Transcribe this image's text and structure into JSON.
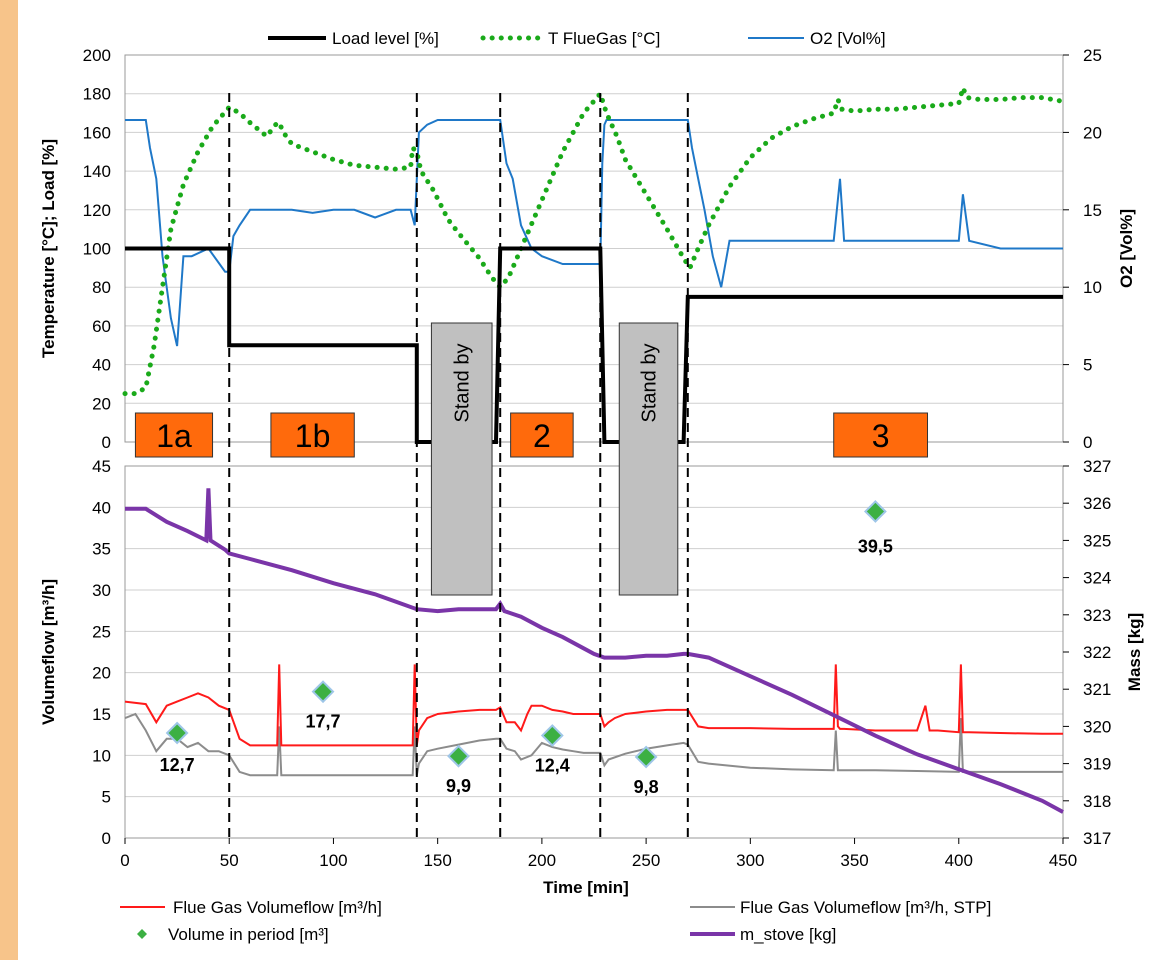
{
  "colors": {
    "frame_left": "#f7c48a",
    "frame_top": "#ffffff",
    "load": "#000000",
    "tflue": "#1aaa1a",
    "o2": "#1f78c8",
    "vf": "#ff1a1a",
    "vfstp": "#8c8c8c",
    "mass": "#7a35a8",
    "marker": "#3cb043",
    "phase_box": "#ff6a0c",
    "standby": "#c0c0c0",
    "grid": "#cfcfcf"
  },
  "chart_data": [
    {
      "type": "line",
      "name": "top",
      "xlim": [
        0,
        450
      ],
      "ylim_left": [
        0,
        200
      ],
      "ylim_right": [
        0,
        25
      ],
      "left_ticks": [
        "0",
        "20",
        "40",
        "60",
        "80",
        "100",
        "120",
        "140",
        "160",
        "180",
        "200"
      ],
      "right_ticks": [
        "0",
        "5",
        "10",
        "15",
        "20",
        "25"
      ],
      "ylabel_left": "Temperature [°C]; Load [%]",
      "ylabel_right": "O2 [Vol%]",
      "legend_position": "top",
      "legend": [
        "Load level [%]",
        "T FlueGas [°C]",
        "O2 [Vol%]"
      ],
      "series": [
        {
          "name": "Load level [%]",
          "axis": "left",
          "x": [
            0,
            50,
            50,
            140,
            140,
            178,
            180,
            228,
            230,
            268,
            270,
            450
          ],
          "y": [
            100,
            100,
            50,
            50,
            0,
            0,
            100,
            100,
            0,
            0,
            75,
            75
          ]
        },
        {
          "name": "T FlueGas [°C]",
          "axis": "left",
          "x": [
            0,
            5,
            10,
            14,
            18,
            22,
            28,
            35,
            42,
            50,
            55,
            60,
            68,
            73,
            74,
            76,
            80,
            90,
            100,
            110,
            120,
            130,
            137,
            138,
            140,
            142,
            148,
            155,
            160,
            170,
            176,
            180,
            184,
            188,
            194,
            200,
            210,
            220,
            228,
            231,
            236,
            240,
            250,
            260,
            268,
            271,
            275,
            280,
            290,
            300,
            310,
            320,
            330,
            340,
            342,
            344,
            350,
            360,
            370,
            380,
            390,
            400,
            402,
            404,
            410,
            420,
            430,
            440,
            450
          ],
          "y": [
            25,
            25,
            28,
            50,
            80,
            110,
            133,
            150,
            163,
            173,
            170,
            165,
            158,
            165,
            165,
            160,
            154,
            150,
            146,
            143,
            142,
            141,
            142,
            152,
            150,
            140,
            130,
            115,
            108,
            95,
            85,
            80,
            85,
            95,
            110,
            125,
            150,
            170,
            180,
            170,
            158,
            146,
            128,
            110,
            95,
            90,
            100,
            112,
            132,
            147,
            157,
            163,
            167,
            170,
            177,
            172,
            171,
            172,
            172,
            173,
            174,
            175,
            183,
            178,
            177,
            177,
            178,
            178,
            176
          ]
        },
        {
          "name": "O2 [Vol%]",
          "axis": "right",
          "x": [
            0,
            5,
            10,
            12,
            15,
            18,
            20,
            22,
            25,
            28,
            32,
            40,
            48,
            50,
            52,
            55,
            60,
            70,
            80,
            90,
            100,
            110,
            120,
            130,
            137,
            139,
            141,
            145,
            150,
            160,
            170,
            178,
            180,
            183,
            186,
            190,
            195,
            200,
            210,
            220,
            228,
            229,
            230,
            231,
            233,
            235,
            240,
            250,
            260,
            268,
            270,
            272,
            275,
            278,
            282,
            286,
            290,
            300,
            320,
            340,
            343,
            345,
            360,
            380,
            400,
            402,
            405,
            420,
            440,
            450
          ],
          "y": [
            20.8,
            20.8,
            20.8,
            19,
            17,
            12,
            10,
            8,
            6.2,
            12,
            12,
            12.5,
            11,
            11,
            13.3,
            14,
            15,
            15,
            15,
            14.8,
            15,
            15,
            14.5,
            15,
            15,
            14,
            20,
            20.5,
            20.8,
            20.8,
            20.8,
            20.8,
            20.8,
            18,
            17,
            14,
            12.5,
            12,
            11.5,
            11.5,
            11.5,
            18,
            20.5,
            20.8,
            20.8,
            20.8,
            20.8,
            20.8,
            20.8,
            20.8,
            20.8,
            19,
            17,
            15,
            12,
            10,
            13,
            13,
            13,
            13,
            17,
            13,
            13,
            13,
            13,
            16,
            13,
            12.5,
            12.5,
            12.5
          ]
        }
      ]
    },
    {
      "type": "line",
      "name": "bottom",
      "xlim": [
        0,
        450
      ],
      "ylim_left": [
        0,
        45
      ],
      "ylim_right": [
        317,
        327
      ],
      "x_ticks": [
        "0",
        "50",
        "100",
        "150",
        "200",
        "250",
        "300",
        "350",
        "400",
        "450"
      ],
      "left_ticks": [
        "0",
        "5",
        "10",
        "15",
        "20",
        "25",
        "30",
        "35",
        "40",
        "45"
      ],
      "right_ticks": [
        "317",
        "318",
        "319",
        "320",
        "321",
        "322",
        "323",
        "324",
        "325",
        "326",
        "327"
      ],
      "xlabel": "Time [min]",
      "ylabel_left": "Volumeflow  [m³/h]",
      "ylabel_right": "Mass [kg]",
      "legend_position": "bottom",
      "legend": [
        "Flue Gas Volumeflow  [m³/h]",
        "Volume in period [m³]",
        "Flue Gas Volumeflow  [m³/h, STP]",
        "m_stove [kg]"
      ],
      "series": [
        {
          "name": "Flue Gas Volumeflow  [m³/h]",
          "axis": "left",
          "x": [
            0,
            10,
            15,
            20,
            25,
            30,
            35,
            40,
            45,
            50,
            55,
            60,
            73,
            74,
            75,
            76,
            80,
            100,
            120,
            138,
            139,
            140,
            141,
            145,
            150,
            160,
            170,
            178,
            180,
            183,
            187,
            190,
            193,
            195,
            200,
            205,
            210,
            215,
            220,
            228,
            230,
            232,
            235,
            240,
            250,
            260,
            268,
            270,
            275,
            280,
            290,
            300,
            320,
            340,
            341,
            342,
            343,
            345,
            360,
            380,
            384,
            386,
            390,
            400,
            401,
            402,
            403,
            405,
            420,
            440,
            450
          ],
          "y": [
            16.5,
            16.2,
            14,
            16,
            16.5,
            17,
            17.5,
            17,
            16,
            15.5,
            12,
            11.2,
            11.2,
            21,
            11.2,
            11.2,
            11.2,
            11.2,
            11.2,
            11.2,
            21,
            11.2,
            13,
            14.5,
            15,
            15.3,
            15.5,
            15.5,
            15.8,
            14,
            14,
            13,
            15,
            16,
            16,
            15.5,
            15.3,
            15,
            15,
            15,
            13.5,
            14,
            14.5,
            15,
            15.3,
            15.5,
            15.5,
            15.5,
            13.5,
            13.3,
            13.3,
            13.3,
            13.2,
            13.2,
            21,
            13.5,
            13.2,
            13.2,
            13,
            13,
            16,
            13,
            13,
            12.8,
            21,
            12.8,
            12.8,
            12.8,
            12.7,
            12.6,
            12.6
          ]
        },
        {
          "name": "Flue Gas Volumeflow  [m³/h, STP]",
          "axis": "left",
          "x": [
            0,
            5,
            10,
            15,
            20,
            25,
            30,
            35,
            40,
            45,
            50,
            55,
            60,
            73,
            74,
            75,
            80,
            100,
            120,
            138,
            139,
            140,
            141,
            145,
            150,
            160,
            170,
            178,
            180,
            183,
            187,
            190,
            195,
            200,
            205,
            210,
            215,
            220,
            228,
            230,
            232,
            240,
            250,
            260,
            268,
            270,
            275,
            280,
            300,
            320,
            340,
            341,
            342,
            345,
            360,
            380,
            400,
            401,
            402,
            405,
            420,
            440,
            450
          ],
          "y": [
            14.5,
            15,
            13,
            10.5,
            12,
            12,
            11,
            11.5,
            10.5,
            10.5,
            10,
            8,
            7.6,
            7.6,
            13.5,
            7.6,
            7.6,
            7.6,
            7.6,
            7.6,
            13.5,
            7.6,
            9,
            10.5,
            10.8,
            11.3,
            11.8,
            12,
            12,
            10.8,
            10.5,
            9.5,
            10,
            11.5,
            11,
            10.7,
            10.5,
            10.3,
            10.3,
            8.8,
            9.5,
            10.2,
            10.8,
            11.2,
            11.5,
            11.3,
            9.2,
            9,
            8.5,
            8.3,
            8.2,
            13,
            8.2,
            8.2,
            8.2,
            8.1,
            8,
            14.5,
            8,
            8,
            8,
            8,
            8
          ]
        },
        {
          "name": "m_stove [kg]",
          "axis": "right",
          "x": [
            0,
            10,
            20,
            30,
            39,
            40,
            41,
            48,
            50,
            60,
            80,
            100,
            120,
            130,
            140,
            150,
            160,
            170,
            178,
            180,
            182,
            190,
            200,
            210,
            220,
            225,
            230,
            240,
            250,
            260,
            268,
            270,
            280,
            300,
            320,
            340,
            360,
            380,
            400,
            420,
            440,
            450
          ],
          "y": [
            325.85,
            325.85,
            325.5,
            325.25,
            325,
            326.4,
            325,
            324.75,
            324.65,
            324.5,
            324.2,
            323.85,
            323.55,
            323.35,
            323.15,
            323.1,
            323.15,
            323.15,
            323.15,
            323.3,
            323.1,
            322.95,
            322.65,
            322.4,
            322.1,
            321.95,
            321.85,
            321.85,
            321.9,
            321.9,
            321.95,
            321.95,
            321.85,
            321.35,
            320.85,
            320.3,
            319.75,
            319.25,
            318.85,
            318.45,
            318,
            317.7
          ]
        },
        {
          "name": "Volume in period [m³]",
          "axis": "left",
          "type": "scatter",
          "points": [
            {
              "x": 25,
              "y": 12.7,
              "label": "12,7"
            },
            {
              "x": 95,
              "y": 17.7,
              "label": "17,7"
            },
            {
              "x": 160,
              "y": 9.9,
              "label": "9,9"
            },
            {
              "x": 205,
              "y": 12.4,
              "label": "12,4"
            },
            {
              "x": 250,
              "y": 9.8,
              "label": "9,8"
            },
            {
              "x": 360,
              "y": 39.5,
              "label": "39,5"
            }
          ]
        }
      ]
    }
  ],
  "phases": [
    {
      "label": "1a"
    },
    {
      "label": "1b"
    },
    {
      "label": "2"
    },
    {
      "label": "3"
    }
  ],
  "standby": [
    {
      "label": "Stand by"
    },
    {
      "label": "Stand by"
    }
  ],
  "phase_boundaries": [
    50,
    140,
    180,
    228,
    270
  ]
}
